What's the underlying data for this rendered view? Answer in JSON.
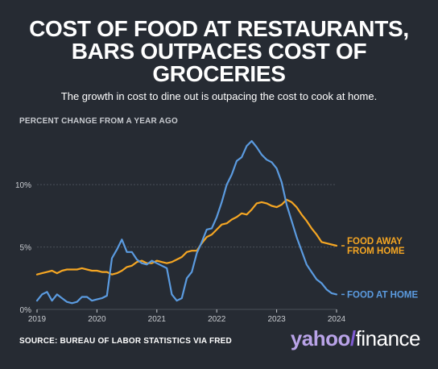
{
  "header": {
    "title": "COST OF FOOD AT RESTAURANTS,\nBARS OUTPACES COST OF\nGROCERIES",
    "subtitle": "The growth in cost to dine out is outpacing the cost to cook at home."
  },
  "axis_caption": "PERCENT CHANGE FROM A YEAR AGO",
  "footer": {
    "source": "SOURCE: BUREAU OF LABOR STATISTICS VIA FRED",
    "brand_part1": "yahoo",
    "brand_part2": "/",
    "brand_part3": "finance"
  },
  "colors": {
    "background": "#262b33",
    "food_at_home": "#5b9be0",
    "food_away": "#f5a623",
    "grid": "#4a505a",
    "text": "#ffffff",
    "muted": "#c9ccd1"
  },
  "chart_data": {
    "type": "line",
    "ylim": [
      0,
      13.5
    ],
    "xlim": [
      2019.0,
      2024.0
    ],
    "y_ticks": [
      {
        "value": 0,
        "label": "0%"
      },
      {
        "value": 5,
        "label": "5%"
      },
      {
        "value": 10,
        "label": "10%"
      }
    ],
    "x_ticks": [
      {
        "value": 2019,
        "label": "2019"
      },
      {
        "value": 2020,
        "label": "2020"
      },
      {
        "value": 2021,
        "label": "2021"
      },
      {
        "value": 2022,
        "label": "2022"
      },
      {
        "value": 2023,
        "label": "2023"
      },
      {
        "value": 2024,
        "label": "2024"
      }
    ],
    "grid": "horizontal",
    "series": [
      {
        "name": "FOOD AWAY FROM HOME",
        "color": "#f5a623",
        "x": [
          2019.0,
          2019.083,
          2019.167,
          2019.25,
          2019.333,
          2019.417,
          2019.5,
          2019.583,
          2019.667,
          2019.75,
          2019.833,
          2019.917,
          2020.0,
          2020.083,
          2020.167,
          2020.25,
          2020.333,
          2020.417,
          2020.5,
          2020.583,
          2020.667,
          2020.75,
          2020.833,
          2020.917,
          2021.0,
          2021.083,
          2021.167,
          2021.25,
          2021.333,
          2021.417,
          2021.5,
          2021.583,
          2021.667,
          2021.75,
          2021.833,
          2021.917,
          2022.0,
          2022.083,
          2022.167,
          2022.25,
          2022.333,
          2022.417,
          2022.5,
          2022.583,
          2022.667,
          2022.75,
          2022.833,
          2022.917,
          2023.0,
          2023.083,
          2023.167,
          2023.25,
          2023.333,
          2023.417,
          2023.5,
          2023.583,
          2023.667,
          2023.75,
          2023.833,
          2023.917,
          2024.0
        ],
        "y": [
          2.8,
          2.9,
          3.0,
          3.1,
          2.9,
          3.1,
          3.2,
          3.2,
          3.2,
          3.3,
          3.2,
          3.1,
          3.1,
          3.0,
          3.0,
          2.8,
          2.9,
          3.1,
          3.4,
          3.5,
          3.8,
          3.9,
          3.7,
          3.7,
          3.9,
          3.8,
          3.7,
          3.8,
          4.0,
          4.2,
          4.6,
          4.7,
          4.7,
          5.3,
          5.8,
          6.0,
          6.4,
          6.8,
          6.9,
          7.2,
          7.4,
          7.7,
          7.6,
          8.0,
          8.5,
          8.6,
          8.5,
          8.3,
          8.2,
          8.4,
          8.8,
          8.6,
          8.2,
          7.6,
          7.1,
          6.5,
          6.0,
          5.4,
          5.3,
          5.2,
          5.1
        ]
      },
      {
        "name": "FOOD AT HOME",
        "color": "#5b9be0",
        "x": [
          2019.0,
          2019.083,
          2019.167,
          2019.25,
          2019.333,
          2019.417,
          2019.5,
          2019.583,
          2019.667,
          2019.75,
          2019.833,
          2019.917,
          2020.0,
          2020.083,
          2020.167,
          2020.25,
          2020.333,
          2020.417,
          2020.5,
          2020.583,
          2020.667,
          2020.75,
          2020.833,
          2020.917,
          2021.0,
          2021.083,
          2021.167,
          2021.25,
          2021.333,
          2021.417,
          2021.5,
          2021.583,
          2021.667,
          2021.75,
          2021.833,
          2021.917,
          2022.0,
          2022.083,
          2022.167,
          2022.25,
          2022.333,
          2022.417,
          2022.5,
          2022.583,
          2022.667,
          2022.75,
          2022.833,
          2022.917,
          2023.0,
          2023.083,
          2023.167,
          2023.25,
          2023.333,
          2023.417,
          2023.5,
          2023.583,
          2023.667,
          2023.75,
          2023.833,
          2023.917,
          2024.0
        ],
        "y": [
          0.7,
          1.2,
          1.4,
          0.7,
          1.2,
          0.9,
          0.6,
          0.5,
          0.6,
          1.0,
          1.0,
          0.7,
          0.8,
          0.9,
          1.1,
          4.1,
          4.8,
          5.6,
          4.6,
          4.6,
          4.0,
          3.7,
          3.6,
          3.9,
          3.7,
          3.5,
          3.3,
          1.2,
          0.7,
          0.9,
          2.5,
          3.0,
          4.5,
          5.4,
          6.4,
          6.5,
          7.4,
          8.6,
          10.0,
          10.8,
          11.9,
          12.2,
          13.1,
          13.5,
          13.0,
          12.4,
          12.0,
          11.8,
          11.3,
          10.2,
          8.4,
          7.1,
          5.8,
          4.7,
          3.6,
          3.0,
          2.4,
          2.1,
          1.6,
          1.3,
          1.2
        ]
      }
    ],
    "end_labels": [
      {
        "series": "FOOD AWAY FROM HOME",
        "lines": [
          "FOOD AWAY",
          "FROM HOME"
        ]
      },
      {
        "series": "FOOD AT HOME",
        "lines": [
          "FOOD AT HOME"
        ]
      }
    ]
  }
}
